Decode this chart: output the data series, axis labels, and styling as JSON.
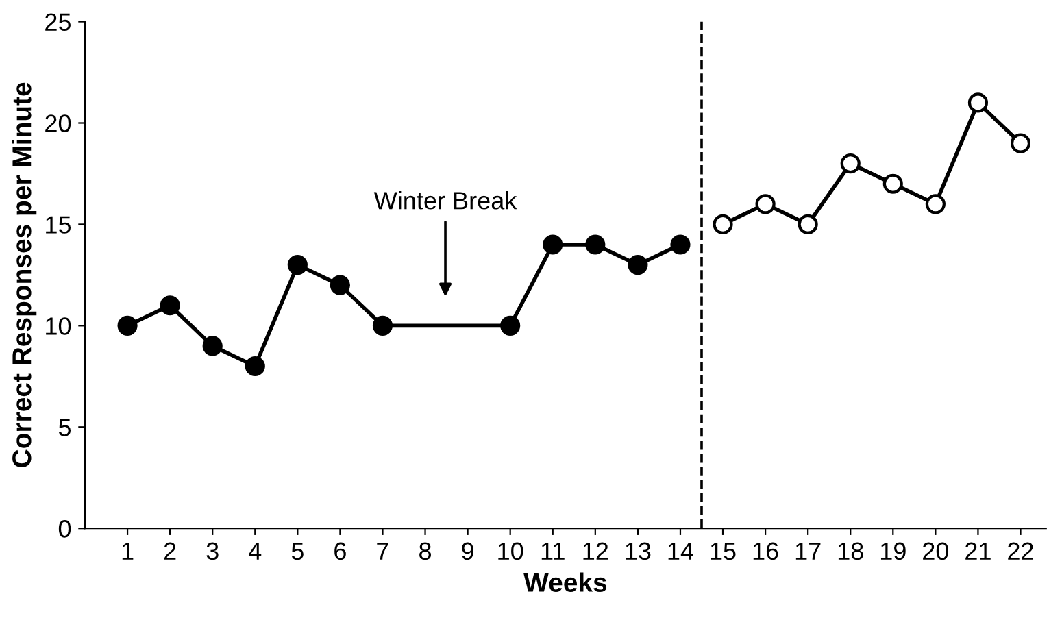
{
  "chart_data": {
    "type": "line",
    "xlabel": "Weeks",
    "ylabel": "Correct Responses per Minute",
    "xlim": [
      0,
      22.6
    ],
    "xticks": [
      1,
      2,
      3,
      4,
      5,
      6,
      7,
      8,
      9,
      10,
      11,
      12,
      13,
      14,
      15,
      16,
      17,
      18,
      19,
      20,
      21,
      22
    ],
    "ylim": [
      0,
      25
    ],
    "yticks": [
      0,
      5,
      10,
      15,
      20,
      25
    ],
    "grid": false,
    "marker": "circle",
    "line_style": "solid",
    "series": [
      {
        "color": "#000000",
        "x": [
          1,
          2,
          3,
          4,
          5,
          6,
          7,
          10,
          11,
          12,
          13,
          14
        ],
        "values": [
          10,
          11,
          9,
          8,
          13,
          12,
          10,
          10,
          14,
          14,
          13,
          14
        ]
      },
      {
        "color": "#000000",
        "x": [
          15,
          16,
          17,
          18,
          19,
          20,
          21,
          22
        ],
        "values": [
          15,
          16,
          15,
          18,
          17,
          16,
          21,
          19
        ]
      }
    ],
    "ref_lines": [
      {
        "axis": "x",
        "value": 14.5,
        "line_style": "dashed",
        "color": "#000000"
      }
    ],
    "annotations": [
      "Winter Break"
    ]
  }
}
